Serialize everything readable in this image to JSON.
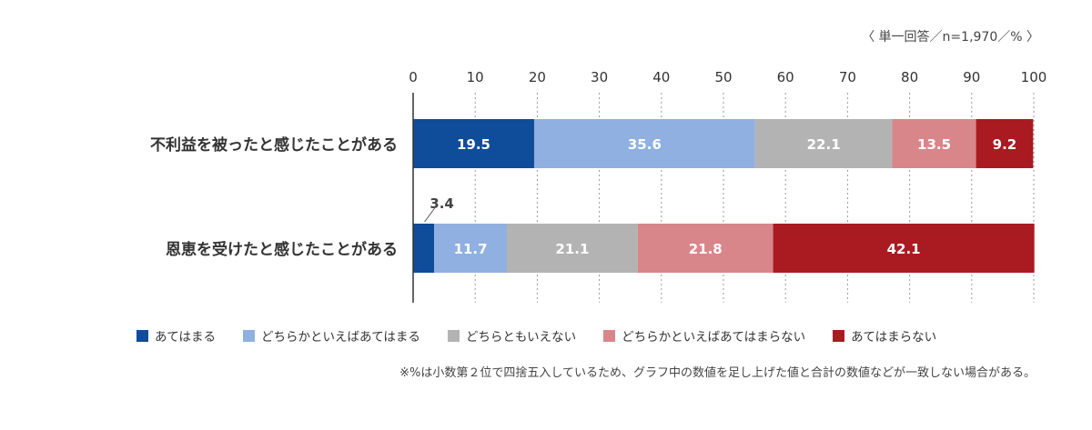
{
  "chart_data": {
    "type": "bar",
    "orientation": "horizontal",
    "stacked": true,
    "unit_note": "〈 単一回答／n=1,970／% 〉",
    "xlim": [
      0,
      100
    ],
    "ticks": [
      0,
      10,
      20,
      30,
      40,
      50,
      60,
      70,
      80,
      90,
      100
    ],
    "categories": [
      "不利益を被ったと感じたことがある",
      "恩恵を受けたと感じたことがある"
    ],
    "series": [
      {
        "name": "あてはまる",
        "color": "#0f4c99",
        "values": [
          19.5,
          3.4
        ]
      },
      {
        "name": "どちらかといえばあてはまる",
        "color": "#8fb0e0",
        "values": [
          35.6,
          11.7
        ]
      },
      {
        "name": "どちらともいえない",
        "color": "#b3b3b3",
        "values": [
          22.1,
          21.1
        ]
      },
      {
        "name": "どちらかといえばあてはまらない",
        "color": "#d9868a",
        "values": [
          13.5,
          21.8
        ]
      },
      {
        "name": "あてはまらない",
        "color": "#a91b21",
        "values": [
          9.2,
          42.1
        ]
      }
    ],
    "footnote": "※%は小数第２位で四捨五入しているため、グラフ中の数値を足し上げた値と合計の数値などが一致しない場合がある。"
  }
}
